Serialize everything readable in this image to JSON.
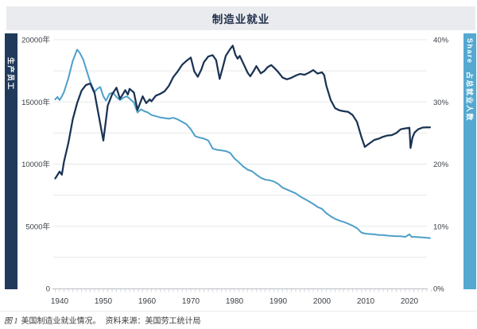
{
  "title": "制造业就业",
  "left_strip": {
    "label": "生产员工"
  },
  "right_strip": {
    "label_en": "Share",
    "label_zh": "占总就业人数"
  },
  "caption": {
    "figure_label": "图 1",
    "text": "美国制造业就业情况。",
    "source_label": "资料来源：",
    "source": "美国劳工统计局"
  },
  "colors": {
    "title_bar_bg": "#e9ebee",
    "title_text": "#23324c",
    "left_strip_bg": "#203a5c",
    "right_strip_bg": "#55a8d0",
    "production_line": "#1a3353",
    "share_line": "#4d9fc9",
    "gridline": "#e6e8eb",
    "axis_line": "#b9bdc3",
    "tick": "#c5c9ce",
    "tick_label": "#3a3f45"
  },
  "chart_data": {
    "type": "line",
    "title": "制造业就业",
    "x_axis": {
      "range": [
        1938.5,
        2025.5
      ],
      "minor_tick_from": 1939,
      "minor_tick_to": 2025,
      "tick_labels": [
        {
          "value": 1940,
          "label": "1940"
        },
        {
          "value": 1950,
          "label": "1950"
        },
        {
          "value": 1960,
          "label": "1960"
        },
        {
          "value": 1970,
          "label": "1970"
        },
        {
          "value": 1980,
          "label": "1980"
        },
        {
          "value": 1990,
          "label": "1990"
        },
        {
          "value": 2000,
          "label": "2000"
        },
        {
          "value": 2010,
          "label": "2010"
        },
        {
          "value": 2020,
          "label": "2020"
        }
      ]
    },
    "left_axis": {
      "title": "生产员工",
      "range": [
        0,
        20000
      ],
      "ticks": [
        {
          "value": 20000,
          "label": "20000年"
        },
        {
          "value": 15000,
          "label": "15000年"
        },
        {
          "value": 10000,
          "label": "10000年"
        },
        {
          "value": 5000,
          "label": "5000年"
        },
        {
          "value": 0,
          "label": "0"
        }
      ]
    },
    "right_axis": {
      "title": "占总就业人数 (Share)",
      "range": [
        0,
        40
      ],
      "ticks": [
        {
          "value": 40,
          "label": "40%"
        },
        {
          "value": 30,
          "label": "30%"
        },
        {
          "value": 20,
          "label": "20%"
        },
        {
          "value": 10,
          "label": "10%"
        },
        {
          "value": 0,
          "label": "0%"
        }
      ]
    },
    "gridline_values": [
      2500,
      5000,
      7500,
      10000,
      12500,
      15000,
      17500,
      20000
    ],
    "series": [
      {
        "name": "占总就业人数",
        "axis": "right",
        "color": "#4d9fc9",
        "width": 2,
        "points": [
          [
            1939,
            30.4
          ],
          [
            1939.5,
            30.8
          ],
          [
            1940,
            30.3
          ],
          [
            1940.5,
            30.9
          ],
          [
            1941,
            31.6
          ],
          [
            1942,
            33.8
          ],
          [
            1943,
            36.6
          ],
          [
            1944,
            38.4
          ],
          [
            1944.6,
            37.9
          ],
          [
            1945.4,
            36.8
          ],
          [
            1946.2,
            35.0
          ],
          [
            1947,
            33.2
          ],
          [
            1948,
            31.6
          ],
          [
            1948.6,
            32.1
          ],
          [
            1949.3,
            32.4
          ],
          [
            1950,
            30.9
          ],
          [
            1950.6,
            30.2
          ],
          [
            1951.4,
            31.3
          ],
          [
            1952.2,
            31.5
          ],
          [
            1953,
            30.8
          ],
          [
            1953.8,
            30.3
          ],
          [
            1954.6,
            30.7
          ],
          [
            1955.4,
            30.9
          ],
          [
            1956.2,
            30.4
          ],
          [
            1957,
            29.9
          ],
          [
            1957.8,
            28.3
          ],
          [
            1958.6,
            28.8
          ],
          [
            1959.4,
            28.5
          ],
          [
            1960.2,
            28.3
          ],
          [
            1961,
            27.9
          ],
          [
            1962,
            27.7
          ],
          [
            1963,
            27.5
          ],
          [
            1964,
            27.4
          ],
          [
            1965,
            27.3
          ],
          [
            1966,
            27.45
          ],
          [
            1967,
            27.2
          ],
          [
            1968,
            26.8
          ],
          [
            1969,
            26.4
          ],
          [
            1970,
            25.6
          ],
          [
            1971,
            24.5
          ],
          [
            1972,
            24.25
          ],
          [
            1973,
            24.1
          ],
          [
            1974,
            23.8
          ],
          [
            1975,
            22.5
          ],
          [
            1976,
            22.3
          ],
          [
            1977,
            22.2
          ],
          [
            1978,
            22.1
          ],
          [
            1979,
            21.8
          ],
          [
            1980,
            20.9
          ],
          [
            1981,
            20.3
          ],
          [
            1982,
            19.6
          ],
          [
            1983,
            19.1
          ],
          [
            1984,
            18.85
          ],
          [
            1985,
            18.3
          ],
          [
            1986,
            17.8
          ],
          [
            1987,
            17.5
          ],
          [
            1988,
            17.4
          ],
          [
            1989,
            17.2
          ],
          [
            1990,
            16.8
          ],
          [
            1991,
            16.2
          ],
          [
            1992,
            15.9
          ],
          [
            1993,
            15.6
          ],
          [
            1994,
            15.3
          ],
          [
            1995,
            14.8
          ],
          [
            1996,
            14.4
          ],
          [
            1997,
            14.0
          ],
          [
            1998,
            13.6
          ],
          [
            1999,
            13.1
          ],
          [
            2000,
            12.8
          ],
          [
            2001,
            12.1
          ],
          [
            2002,
            11.6
          ],
          [
            2003,
            11.2
          ],
          [
            2004,
            10.9
          ],
          [
            2005,
            10.7
          ],
          [
            2006,
            10.4
          ],
          [
            2007,
            10.1
          ],
          [
            2008,
            9.7
          ],
          [
            2009,
            9.0
          ],
          [
            2010,
            8.8
          ],
          [
            2011,
            8.75
          ],
          [
            2012,
            8.7
          ],
          [
            2013,
            8.6
          ],
          [
            2014,
            8.6
          ],
          [
            2015,
            8.5
          ],
          [
            2016,
            8.45
          ],
          [
            2017,
            8.4
          ],
          [
            2018,
            8.4
          ],
          [
            2019,
            8.3
          ],
          [
            2020,
            8.7
          ],
          [
            2020.5,
            8.3
          ],
          [
            2021,
            8.3
          ],
          [
            2022,
            8.25
          ],
          [
            2023,
            8.2
          ],
          [
            2024,
            8.15
          ],
          [
            2024.7,
            8.1
          ]
        ]
      },
      {
        "name": "生产员工",
        "axis": "left",
        "color": "#1a3353",
        "width": 2.25,
        "points": [
          [
            1939,
            8850
          ],
          [
            1940,
            9400
          ],
          [
            1940.5,
            9150
          ],
          [
            1941,
            10200
          ],
          [
            1942,
            11700
          ],
          [
            1943,
            13600
          ],
          [
            1944,
            14900
          ],
          [
            1945,
            15900
          ],
          [
            1946,
            16350
          ],
          [
            1947,
            16480
          ],
          [
            1948,
            15700
          ],
          [
            1949,
            13800
          ],
          [
            1950,
            11900
          ],
          [
            1950.5,
            13300
          ],
          [
            1951,
            14700
          ],
          [
            1952,
            15600
          ],
          [
            1953,
            16150
          ],
          [
            1953.8,
            15250
          ],
          [
            1954.6,
            15700
          ],
          [
            1955,
            15950
          ],
          [
            1955.6,
            15600
          ],
          [
            1956,
            16050
          ],
          [
            1957,
            15750
          ],
          [
            1957.8,
            14350
          ],
          [
            1958.4,
            14900
          ],
          [
            1959,
            15450
          ],
          [
            1959.8,
            14900
          ],
          [
            1960.6,
            15200
          ],
          [
            1961,
            15050
          ],
          [
            1962,
            15500
          ],
          [
            1963,
            15650
          ],
          [
            1964,
            15850
          ],
          [
            1965,
            16300
          ],
          [
            1966,
            17000
          ],
          [
            1967,
            17450
          ],
          [
            1968,
            17980
          ],
          [
            1969,
            18300
          ],
          [
            1970,
            18570
          ],
          [
            1970.8,
            17450
          ],
          [
            1971.6,
            17020
          ],
          [
            1972.4,
            17600
          ],
          [
            1973,
            18200
          ],
          [
            1974,
            18650
          ],
          [
            1975,
            18760
          ],
          [
            1975.8,
            18350
          ],
          [
            1976.6,
            16850
          ],
          [
            1977.4,
            17900
          ],
          [
            1978,
            18700
          ],
          [
            1979,
            19250
          ],
          [
            1979.6,
            19520
          ],
          [
            1980.2,
            18800
          ],
          [
            1980.7,
            18480
          ],
          [
            1981.2,
            18700
          ],
          [
            1982,
            18100
          ],
          [
            1983,
            17350
          ],
          [
            1983.6,
            17060
          ],
          [
            1984.4,
            17500
          ],
          [
            1985,
            17880
          ],
          [
            1986,
            17300
          ],
          [
            1986.8,
            17480
          ],
          [
            1987.6,
            17800
          ],
          [
            1988.4,
            17960
          ],
          [
            1989.2,
            17700
          ],
          [
            1990,
            17400
          ],
          [
            1991,
            16950
          ],
          [
            1992,
            16820
          ],
          [
            1993,
            16940
          ],
          [
            1994,
            17120
          ],
          [
            1995,
            17250
          ],
          [
            1996,
            17180
          ],
          [
            1997,
            17350
          ],
          [
            1998,
            17560
          ],
          [
            1999,
            17280
          ],
          [
            2000,
            17380
          ],
          [
            2000.5,
            17150
          ],
          [
            2001,
            16300
          ],
          [
            2002,
            15150
          ],
          [
            2003,
            14500
          ],
          [
            2004,
            14320
          ],
          [
            2005,
            14250
          ],
          [
            2006,
            14200
          ],
          [
            2007,
            13950
          ],
          [
            2008,
            13400
          ],
          [
            2009,
            12200
          ],
          [
            2009.8,
            11380
          ],
          [
            2010.6,
            11600
          ],
          [
            2012,
            11950
          ],
          [
            2013,
            12050
          ],
          [
            2014,
            12200
          ],
          [
            2015,
            12300
          ],
          [
            2016,
            12330
          ],
          [
            2017,
            12500
          ],
          [
            2018,
            12800
          ],
          [
            2019,
            12870
          ],
          [
            2020,
            12920
          ],
          [
            2020.25,
            11300
          ],
          [
            2020.7,
            12150
          ],
          [
            2021.2,
            12550
          ],
          [
            2022,
            12800
          ],
          [
            2023,
            12940
          ],
          [
            2024,
            12950
          ],
          [
            2024.7,
            12950
          ]
        ]
      }
    ]
  }
}
